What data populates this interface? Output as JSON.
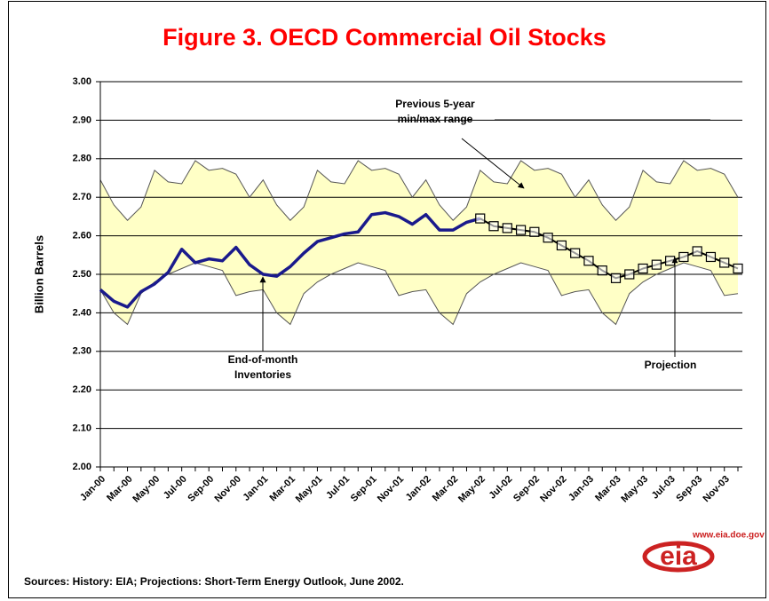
{
  "chart_data": {
    "type": "line",
    "title": "Figure 3. OECD Commercial Oil Stocks",
    "y_label": "Billion Barrels",
    "source": "Sources: History:  EIA;  Projections: Short-Term Energy Outlook, June 2002.",
    "logo": {
      "url": "www.eia.doe.gov",
      "mark": "eia"
    },
    "annotations": [
      {
        "lines": [
          "Previous 5-year",
          "min/max range"
        ]
      },
      {
        "lines": [
          "End-of-month",
          "Inventories"
        ]
      },
      {
        "lines": [
          "Projection"
        ]
      }
    ],
    "categories": [
      "Jan-00",
      null,
      "Mar-00",
      null,
      "May-00",
      null,
      "Jul-00",
      null,
      "Sep-00",
      null,
      "Nov-00",
      null,
      "Jan-01",
      null,
      "Mar-01",
      null,
      "May-01",
      null,
      "Jul-01",
      null,
      "Sep-01",
      null,
      "Nov-01",
      null,
      "Jan-02",
      null,
      "Mar-02",
      null,
      "May-02",
      null,
      "Jul-02",
      null,
      "Sep-02",
      null,
      "Nov-02",
      null,
      "Jan-03",
      null,
      "Mar-03",
      null,
      "May-03",
      null,
      "Jul-03",
      null,
      "Sep-03",
      null,
      "Nov-03",
      null
    ],
    "band": {
      "color": "#ffffc6",
      "edge_color": "#555555",
      "max": [
        2.745,
        2.68,
        2.64,
        2.675,
        2.77,
        2.74,
        2.735,
        2.795,
        2.77,
        2.775,
        2.76,
        2.7,
        2.745,
        2.68,
        2.64,
        2.675,
        2.77,
        2.74,
        2.735,
        2.795,
        2.77,
        2.775,
        2.76,
        2.7,
        2.745,
        2.68,
        2.64,
        2.675,
        2.77,
        2.74,
        2.735,
        2.795,
        2.77,
        2.775,
        2.76,
        2.7,
        2.745,
        2.68,
        2.64,
        2.675,
        2.77,
        2.74,
        2.735,
        2.795,
        2.77,
        2.775,
        2.76,
        2.7
      ],
      "min": [
        2.46,
        2.4,
        2.37,
        2.45,
        2.48,
        2.5,
        2.515,
        2.53,
        2.52,
        2.51,
        2.445,
        2.455,
        2.46,
        2.4,
        2.37,
        2.45,
        2.48,
        2.5,
        2.515,
        2.53,
        2.52,
        2.51,
        2.445,
        2.455,
        2.46,
        2.4,
        2.37,
        2.45,
        2.48,
        2.5,
        2.515,
        2.53,
        2.52,
        2.51,
        2.445,
        2.455,
        2.46,
        2.4,
        2.37,
        2.45,
        2.48,
        2.5,
        2.515,
        2.53,
        2.52,
        2.51,
        2.445,
        2.45
      ]
    },
    "series": [
      {
        "color": "#1a1a8c",
        "marker": "none",
        "values": [
          2.46,
          2.43,
          2.415,
          2.455,
          2.475,
          2.505,
          2.565,
          2.53,
          2.54,
          2.535,
          2.57,
          2.525,
          2.5,
          2.495,
          2.52,
          2.555,
          2.585,
          2.595,
          2.605,
          2.61,
          2.655,
          2.66,
          2.65,
          2.63,
          2.655,
          2.615,
          2.615,
          2.635,
          2.645,
          null,
          null,
          null,
          null,
          null,
          null,
          null,
          null,
          null,
          null,
          null,
          null,
          null,
          null,
          null,
          null,
          null,
          null,
          null
        ]
      },
      {
        "color": "#000000",
        "marker": "square",
        "values": [
          null,
          null,
          null,
          null,
          null,
          null,
          null,
          null,
          null,
          null,
          null,
          null,
          null,
          null,
          null,
          null,
          null,
          null,
          null,
          null,
          null,
          null,
          null,
          null,
          null,
          null,
          null,
          null,
          2.645,
          2.625,
          2.62,
          2.615,
          2.61,
          2.595,
          2.575,
          2.555,
          2.535,
          2.51,
          2.49,
          2.5,
          2.515,
          2.525,
          2.535,
          2.545,
          2.56,
          2.545,
          2.53,
          2.515
        ]
      }
    ],
    "ylim": [
      2,
      3
    ],
    "yticks": [
      {
        "value": 2,
        "label": "2.00"
      },
      {
        "value": 2.1,
        "label": "2.10"
      },
      {
        "value": 2.2,
        "label": "2.20"
      },
      {
        "value": 2.3,
        "label": "2.30"
      },
      {
        "value": 2.4,
        "label": "2.40"
      },
      {
        "value": 2.5,
        "label": "2.50"
      },
      {
        "value": 2.6,
        "label": "2.60"
      },
      {
        "value": 2.7,
        "label": "2.70"
      },
      {
        "value": 2.8,
        "label": "2.80"
      },
      {
        "value": 2.9,
        "label": "2.90"
      },
      {
        "value": 3,
        "label": "3.00"
      }
    ],
    "grid": true
  }
}
